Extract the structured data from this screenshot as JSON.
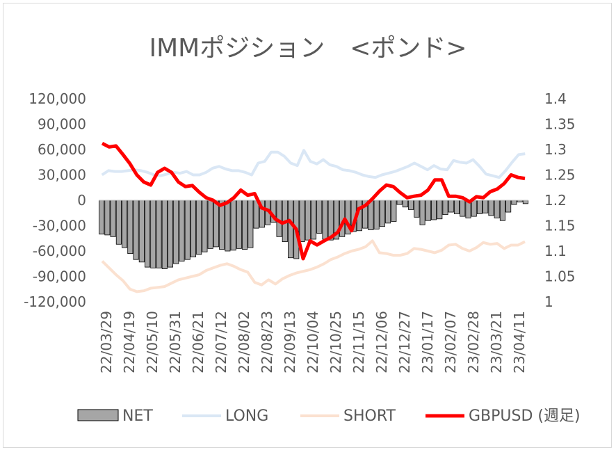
{
  "chart_data": {
    "type": "bar+line",
    "title": "IMMポジション　<ポンド>",
    "y_left": {
      "min": -120000,
      "max": 120000,
      "step": 30000,
      "ticks": [
        "-120,000",
        "-90,000",
        "-60,000",
        "-30,000",
        "0",
        "30,000",
        "60,000",
        "90,000",
        "120,000"
      ]
    },
    "y_right": {
      "min": 1.0,
      "max": 1.4,
      "step": 0.05,
      "ticks": [
        "1",
        "1.05",
        "1.1",
        "1.15",
        "1.2",
        "1.25",
        "1.3",
        "1.35",
        "1.4"
      ]
    },
    "x_labels": [
      "22/03/29",
      "22/04/19",
      "22/05/10",
      "22/05/31",
      "22/06/21",
      "22/07/12",
      "22/08/02",
      "22/08/23",
      "22/09/13",
      "22/10/04",
      "22/10/25",
      "22/11/15",
      "22/12/06",
      "22/12/27",
      "23/01/17",
      "23/02/07",
      "23/02/28",
      "23/03/21",
      "23/04/11"
    ],
    "legend": [
      "NET",
      "LONG",
      "SHORT",
      "GBPUSD (週足)"
    ],
    "colors": {
      "net": "#a6a6a6",
      "net_stroke": "#000000",
      "long": "#dae7f5",
      "short": "#fbe1d0",
      "gbpusd": "#ff0000"
    },
    "series": {
      "NET": [
        -40000,
        -41000,
        -43000,
        -52000,
        -56000,
        -63000,
        -70000,
        -73000,
        -79000,
        -80000,
        -80000,
        -81000,
        -79000,
        -75000,
        -72000,
        -70000,
        -67000,
        -64000,
        -61000,
        -57000,
        -55000,
        -58000,
        -60000,
        -59000,
        -57000,
        -58000,
        -56000,
        -33000,
        -32000,
        -29000,
        -26000,
        -43000,
        -49000,
        -68000,
        -69000,
        -49000,
        -47000,
        -46000,
        -39000,
        -46000,
        -47000,
        -46000,
        -43000,
        -40000,
        -37000,
        -36000,
        -33000,
        -35000,
        -34000,
        -31000,
        -27000,
        -25000,
        -5000,
        -8000,
        -11000,
        -20000,
        -29000,
        -24000,
        -23000,
        -22000,
        -17000,
        -14000,
        -16000,
        -19000,
        -21000,
        -19000,
        -16000,
        -15000,
        -18000,
        -21000,
        -24000,
        -14000,
        -5000,
        -2000,
        -4000
      ],
      "LONG": [
        30000,
        35000,
        34000,
        34000,
        35000,
        36000,
        35000,
        33000,
        30000,
        29000,
        31000,
        33000,
        32000,
        34000,
        30000,
        30000,
        33000,
        38000,
        40000,
        37000,
        35000,
        35000,
        33000,
        30000,
        44000,
        46000,
        57000,
        57000,
        52000,
        44000,
        41000,
        59000,
        46000,
        43000,
        48000,
        42000,
        40000,
        36000,
        35000,
        33000,
        30000,
        28000,
        27000,
        30000,
        32000,
        34000,
        37000,
        40000,
        44000,
        40000,
        36000,
        41000,
        37000,
        36000,
        47000,
        45000,
        44000,
        48000,
        40000,
        31000,
        29000,
        27000,
        35000,
        45000,
        54000,
        55000
      ],
      "SHORT": [
        -72000,
        -80000,
        -88000,
        -95000,
        -105000,
        -108000,
        -107000,
        -104000,
        -103000,
        -102000,
        -98000,
        -94000,
        -92000,
        -90000,
        -88000,
        -83000,
        -80000,
        -77000,
        -75000,
        -78000,
        -82000,
        -85000,
        -97000,
        -100000,
        -94000,
        -99000,
        -93000,
        -89000,
        -86000,
        -84000,
        -82000,
        -79000,
        -75000,
        -70000,
        -67000,
        -63000,
        -60000,
        -58000,
        -55000,
        -48000,
        -62000,
        -63000,
        -65000,
        -65000,
        -63000,
        -57000,
        -58000,
        -60000,
        -62000,
        -59000,
        -53000,
        -52000,
        -57000,
        -60000,
        -56000,
        -50000,
        -52000,
        -51000,
        -57000,
        -53000,
        -53000,
        -49000
      ],
      "GBPUSD": [
        1.312,
        1.305,
        1.307,
        1.29,
        1.272,
        1.25,
        1.236,
        1.23,
        1.255,
        1.263,
        1.255,
        1.236,
        1.227,
        1.229,
        1.216,
        1.205,
        1.2,
        1.19,
        1.195,
        1.205,
        1.22,
        1.21,
        1.213,
        1.185,
        1.18,
        1.163,
        1.155,
        1.16,
        1.143,
        1.085,
        1.12,
        1.112,
        1.12,
        1.127,
        1.137,
        1.163,
        1.14,
        1.183,
        1.19,
        1.203,
        1.218,
        1.23,
        1.227,
        1.215,
        1.205,
        1.208,
        1.21,
        1.22,
        1.24,
        1.24,
        1.208,
        1.208,
        1.205,
        1.197,
        1.207,
        1.205,
        1.217,
        1.222,
        1.233,
        1.25,
        1.245,
        1.243
      ]
    }
  }
}
